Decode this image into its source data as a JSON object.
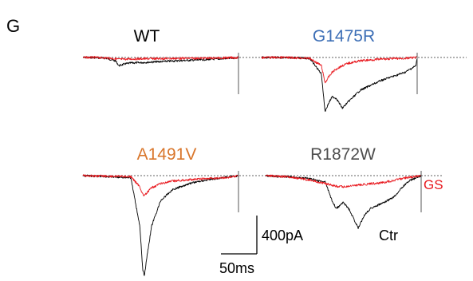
{
  "panel_label": "G",
  "colors": {
    "control": "#000000",
    "gs": "#e8191f",
    "baseline": "#808080",
    "wt_title": "#000000",
    "g1475r_title": "#3d6fb6",
    "a1491v_title": "#d9762b",
    "r1872w_title": "#4d4d4d"
  },
  "chart_data": [
    {
      "type": "line",
      "title": "WT",
      "series": [
        {
          "label": "Ctr",
          "x": [
            0,
            20,
            40,
            55,
            60,
            70,
            80,
            100,
            130,
            160,
            200,
            230,
            255,
            260
          ],
          "y": [
            0,
            0,
            -10,
            -40,
            -90,
            -70,
            -60,
            -55,
            -45,
            -35,
            -25,
            -15,
            -5,
            0
          ]
        },
        {
          "label": "GS",
          "x": [
            0,
            20,
            40,
            55,
            60,
            70,
            80,
            100,
            130,
            160,
            200,
            230,
            255,
            260
          ],
          "y": [
            0,
            0,
            -5,
            -15,
            -20,
            -18,
            -16,
            -14,
            -12,
            -10,
            -8,
            -5,
            -2,
            0
          ]
        }
      ]
    },
    {
      "type": "line",
      "title": "G1475R",
      "series": [
        {
          "label": "Ctr",
          "x": [
            0,
            40,
            80,
            100,
            106,
            112,
            118,
            125,
            135,
            145,
            165,
            200,
            240,
            258,
            260
          ],
          "y": [
            0,
            0,
            -5,
            -100,
            -330,
            -280,
            -240,
            -250,
            -310,
            -270,
            -200,
            -140,
            -90,
            -50,
            0
          ]
        },
        {
          "label": "GS",
          "x": [
            0,
            40,
            80,
            100,
            106,
            112,
            118,
            125,
            135,
            145,
            165,
            200,
            240,
            260
          ],
          "y": [
            0,
            0,
            -5,
            -50,
            -155,
            -120,
            -90,
            -70,
            -50,
            -35,
            -20,
            -10,
            -5,
            0
          ]
        }
      ]
    },
    {
      "type": "line",
      "title": "A1491V",
      "series": [
        {
          "label": "Ctr",
          "x": [
            0,
            40,
            80,
            95,
            100,
            103,
            106,
            115,
            130,
            150,
            180,
            210,
            240,
            260
          ],
          "y": [
            0,
            -10,
            -20,
            -500,
            -950,
            -1000,
            -850,
            -500,
            -250,
            -140,
            -75,
            -40,
            -15,
            0
          ]
        },
        {
          "label": "GS",
          "x": [
            0,
            40,
            80,
            95,
            100,
            103,
            106,
            115,
            130,
            150,
            180,
            210,
            240,
            260
          ],
          "y": [
            0,
            -5,
            -10,
            -110,
            -190,
            -200,
            -180,
            -120,
            -80,
            -55,
            -40,
            -30,
            -20,
            0
          ]
        }
      ]
    },
    {
      "type": "line",
      "title": "R1872W",
      "series": [
        {
          "label": "Ctr",
          "x": [
            0,
            40,
            70,
            100,
            110,
            118,
            124,
            130,
            140,
            155,
            165,
            175,
            185,
            200,
            215,
            230,
            240,
            260
          ],
          "y": [
            0,
            -10,
            -20,
            -50,
            -180,
            -250,
            -230,
            -200,
            -260,
            -400,
            -300,
            -250,
            -230,
            -200,
            -160,
            -80,
            -40,
            0
          ]
        },
        {
          "label": "GS",
          "x": [
            0,
            40,
            70,
            100,
            118,
            130,
            160,
            200,
            230,
            260
          ],
          "y": [
            0,
            -10,
            -30,
            -60,
            -80,
            -85,
            -70,
            -50,
            -20,
            0
          ]
        }
      ]
    }
  ],
  "scale_bar": {
    "current_label": "400pA",
    "time_label": "50ms",
    "current_value": 400,
    "time_value": 50
  },
  "trace_labels": {
    "gs": "GS",
    "ctr": "Ctr"
  }
}
